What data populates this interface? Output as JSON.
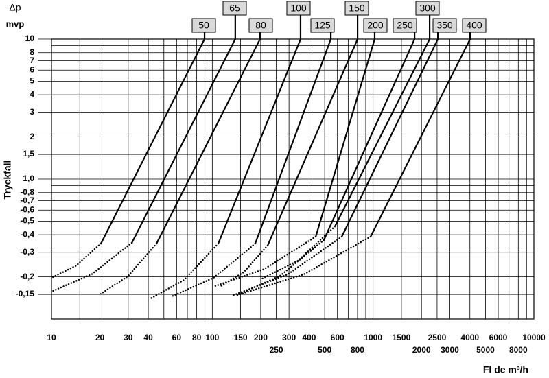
{
  "chart_data": {
    "type": "line",
    "ylabel_symbol": "Δp",
    "ylabel_unit": "mvp",
    "ylabel": "Tryckfall",
    "xlabel": "Fl  de m³/h",
    "xscale": "log",
    "yscale": "log",
    "grid": true,
    "xlim": [
      10,
      10000
    ],
    "ylim": [
      0.1,
      10
    ],
    "xticks": [
      10,
      20,
      30,
      40,
      60,
      80,
      100,
      150,
      200,
      250,
      300,
      400,
      500,
      600,
      800,
      1000,
      1500,
      2000,
      2500,
      3000,
      4000,
      5000,
      6000,
      8000,
      10000
    ],
    "xminorticks": [
      15,
      50,
      70,
      90,
      700,
      900,
      7000,
      9000
    ],
    "yticks": [
      10,
      8,
      7,
      6,
      5,
      4,
      3,
      2,
      {
        "value": 1.5,
        "label": "1,5"
      },
      {
        "value": 1.0,
        "label": "1,0"
      },
      {
        "value": 0.8,
        "label": "-0,8"
      },
      {
        "value": 0.7,
        "label": "-0,7"
      },
      {
        "value": 0.6,
        "label": "-0,6"
      },
      {
        "value": 0.5,
        "label": "-0,5"
      },
      {
        "value": 0.4,
        "label": "-0,4"
      },
      {
        "value": 0.3,
        "label": "-0,3"
      },
      {
        "value": 0.2,
        "label": "-0,2"
      },
      {
        "value": 0.15,
        "label": "-0,15"
      }
    ],
    "yminorticks": [
      9,
      0.9
    ],
    "color": "#000000",
    "series": [
      {
        "name": "50",
        "x": [
          89.5,
          20.3,
          14.2,
          10
        ],
        "values": [
          10,
          0.346,
          0.24,
          0.197
        ]
      },
      {
        "name": "65",
        "x": [
          139,
          31.6,
          17.8,
          10
        ],
        "values": [
          10,
          0.35,
          0.209,
          0.157
        ]
      },
      {
        "name": "80",
        "x": [
          198,
          45,
          29.9,
          20
        ],
        "values": [
          10,
          0.346,
          0.202,
          0.15
        ]
      },
      {
        "name": "100",
        "x": [
          354,
          109,
          66.6,
          40.8
        ],
        "values": [
          10,
          0.346,
          0.19,
          0.139
        ]
      },
      {
        "name": "125",
        "x": [
          546,
          185,
          102,
          55.8
        ],
        "values": [
          10,
          0.346,
          0.197,
          0.145
        ]
      },
      {
        "name": "150",
        "x": [
          801,
          221,
          157,
          111
        ],
        "values": [
          10,
          0.335,
          0.216,
          0.17
        ]
      },
      {
        "name": "200",
        "x": [
          1023,
          440,
          210,
          101
        ],
        "values": [
          10,
          0.388,
          0.227,
          0.17
        ]
      },
      {
        "name": "250",
        "x": [
          1811,
          494,
          265,
          142
        ],
        "values": [
          10,
          0.366,
          0.204,
          0.148
        ]
      },
      {
        "name": "300",
        "x": [
          2248,
          579,
          341,
          200
        ],
        "values": [
          10,
          0.459,
          0.261,
          0.192
        ]
      },
      {
        "name": "350",
        "x": [
          2529,
          639,
          294,
          135
        ],
        "values": [
          10,
          0.388,
          0.208,
          0.148
        ]
      },
      {
        "name": "400",
        "x": [
          4010,
          966,
          370,
          142
        ],
        "values": [
          10,
          0.388,
          0.208,
          0.148
        ]
      }
    ]
  }
}
